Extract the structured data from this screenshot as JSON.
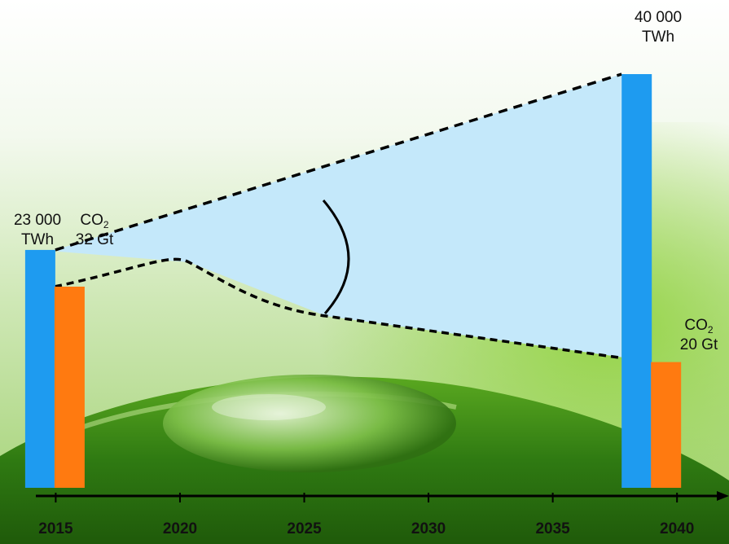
{
  "chart_data": {
    "type": "bar",
    "x_axis": {
      "ticks": [
        "2015",
        "2020",
        "2025",
        "2030",
        "2035",
        "2040"
      ],
      "range": [
        2014.2,
        2041.6
      ]
    },
    "series": [
      {
        "key": "electricity",
        "color": "#1E9BF0",
        "points": [
          {
            "x": 2015,
            "value": 23000
          },
          {
            "x": 2039,
            "value": 40000
          }
        ]
      },
      {
        "key": "co2",
        "color": "#FF7A10",
        "points": [
          {
            "x": 2015,
            "value": 32
          },
          {
            "x": 2039,
            "value": 20
          }
        ]
      }
    ],
    "annotations": {
      "elec_2015": {
        "value": "23 000",
        "unit": "TWh"
      },
      "co2_2015": {
        "main": "CO",
        "sub": "2",
        "value": "32 Gt"
      },
      "elec_2040": {
        "value": "40 000",
        "unit": "TWh"
      },
      "co2_2040": {
        "main": "CO",
        "sub": "2",
        "value": "20 Gt"
      }
    },
    "fill_color": "#C4E8FA",
    "trend_lines": "dashed"
  }
}
